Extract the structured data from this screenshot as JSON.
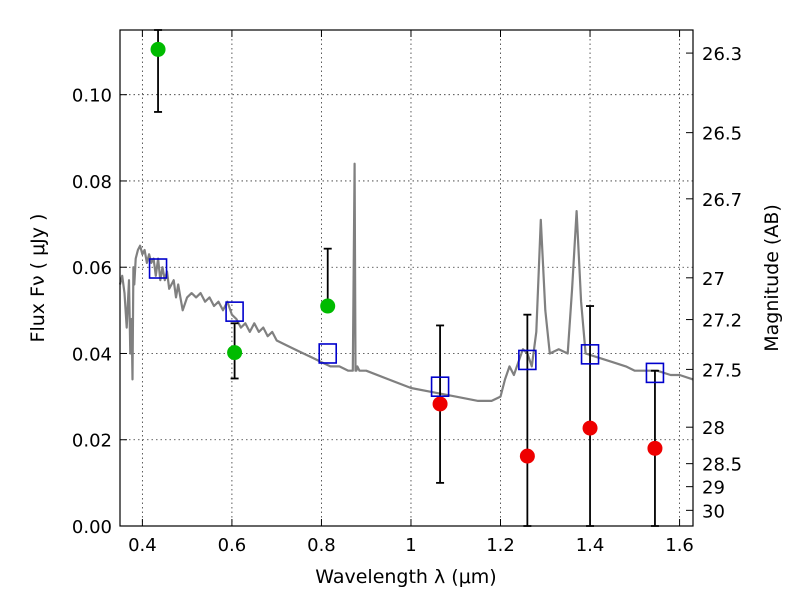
{
  "chart_data": {
    "type": "scatter",
    "xlabel": "Wavelength  λ (μm)",
    "ylabel": "Flux  Fν  ( μJy )",
    "y2label": "Magnitude (AB)",
    "xlim": [
      0.35,
      1.63
    ],
    "ylim": [
      0.0,
      0.115
    ],
    "grid": true,
    "x_ticks": [
      0.4,
      0.6,
      0.8,
      1.0,
      1.2,
      1.4,
      1.6
    ],
    "x_tick_labels": [
      "0.4",
      "0.6",
      "0.8",
      "1",
      "1.2",
      "1.4",
      "1.6"
    ],
    "y_ticks": [
      0.0,
      0.02,
      0.04,
      0.06,
      0.08,
      0.1
    ],
    "y_tick_labels": [
      "0.00",
      "0.02",
      "0.04",
      "0.06",
      "0.08",
      "0.10"
    ],
    "mag_ticks": [
      26.3,
      26.5,
      26.7,
      27.0,
      27.2,
      27.5,
      28.0,
      28.5,
      29.0,
      30.0
    ],
    "mag_tick_labels": [
      "26.3",
      "26.5",
      "26.7",
      "27",
      "27.2",
      "27.5",
      "28",
      "28.5",
      "29",
      "30"
    ],
    "series": [
      {
        "kind": "detections",
        "color": "#00bb00",
        "marker": "circle",
        "x": [
          0.435,
          0.606,
          0.814
        ],
        "y": [
          0.1105,
          0.0402,
          0.051
        ],
        "err_low": [
          0.096,
          0.0342,
          0.051
        ],
        "err_high": [
          0.115,
          0.047,
          0.0643
        ]
      },
      {
        "kind": "upper_limits",
        "color": "#ee0000",
        "marker": "circle",
        "x": [
          1.065,
          1.26,
          1.4,
          1.545
        ],
        "y": [
          0.0283,
          0.0162,
          0.0227,
          0.018
        ],
        "err_low": [
          0.01,
          0.0,
          0.0,
          0.0
        ],
        "err_high": [
          0.0465,
          0.049,
          0.051,
          0.036
        ]
      },
      {
        "kind": "model_photometry",
        "color": "#0000cc",
        "marker": "open-square",
        "x": [
          0.435,
          0.606,
          0.814,
          1.065,
          1.26,
          1.4,
          1.545
        ],
        "y": [
          0.0597,
          0.0497,
          0.04,
          0.0323,
          0.0385,
          0.0398,
          0.0355
        ]
      },
      {
        "kind": "sed_model",
        "color": "#808080",
        "x": [
          0.35,
          0.355,
          0.36,
          0.365,
          0.37,
          0.373,
          0.376,
          0.378,
          0.38,
          0.382,
          0.385,
          0.39,
          0.395,
          0.4,
          0.405,
          0.41,
          0.415,
          0.42,
          0.425,
          0.43,
          0.435,
          0.44,
          0.445,
          0.45,
          0.455,
          0.46,
          0.47,
          0.475,
          0.48,
          0.485,
          0.49,
          0.5,
          0.51,
          0.52,
          0.53,
          0.54,
          0.55,
          0.56,
          0.57,
          0.58,
          0.59,
          0.6,
          0.61,
          0.62,
          0.63,
          0.64,
          0.65,
          0.66,
          0.67,
          0.68,
          0.69,
          0.7,
          0.72,
          0.74,
          0.76,
          0.78,
          0.8,
          0.82,
          0.84,
          0.86,
          0.87,
          0.874,
          0.876,
          0.878,
          0.88,
          0.885,
          0.9,
          0.95,
          1.0,
          1.05,
          1.1,
          1.15,
          1.18,
          1.2,
          1.21,
          1.22,
          1.23,
          1.25,
          1.26,
          1.27,
          1.28,
          1.29,
          1.3,
          1.31,
          1.33,
          1.35,
          1.36,
          1.37,
          1.38,
          1.39,
          1.42,
          1.45,
          1.48,
          1.5,
          1.52,
          1.55,
          1.58,
          1.6,
          1.63
        ],
        "y": [
          0.056,
          0.058,
          0.054,
          0.046,
          0.057,
          0.04,
          0.048,
          0.034,
          0.06,
          0.056,
          0.062,
          0.064,
          0.065,
          0.063,
          0.064,
          0.061,
          0.063,
          0.061,
          0.062,
          0.058,
          0.062,
          0.057,
          0.06,
          0.057,
          0.059,
          0.055,
          0.057,
          0.053,
          0.056,
          0.053,
          0.05,
          0.053,
          0.054,
          0.053,
          0.054,
          0.052,
          0.053,
          0.051,
          0.052,
          0.05,
          0.052,
          0.049,
          0.048,
          0.046,
          0.047,
          0.045,
          0.047,
          0.045,
          0.046,
          0.044,
          0.045,
          0.043,
          0.042,
          0.041,
          0.04,
          0.039,
          0.038,
          0.037,
          0.037,
          0.036,
          0.036,
          0.084,
          0.036,
          0.036,
          0.037,
          0.036,
          0.036,
          0.034,
          0.032,
          0.031,
          0.03,
          0.029,
          0.029,
          0.03,
          0.034,
          0.037,
          0.035,
          0.041,
          0.04,
          0.037,
          0.045,
          0.071,
          0.05,
          0.04,
          0.041,
          0.04,
          0.055,
          0.073,
          0.052,
          0.04,
          0.039,
          0.038,
          0.037,
          0.036,
          0.036,
          0.036,
          0.035,
          0.035,
          0.034
        ]
      }
    ]
  }
}
